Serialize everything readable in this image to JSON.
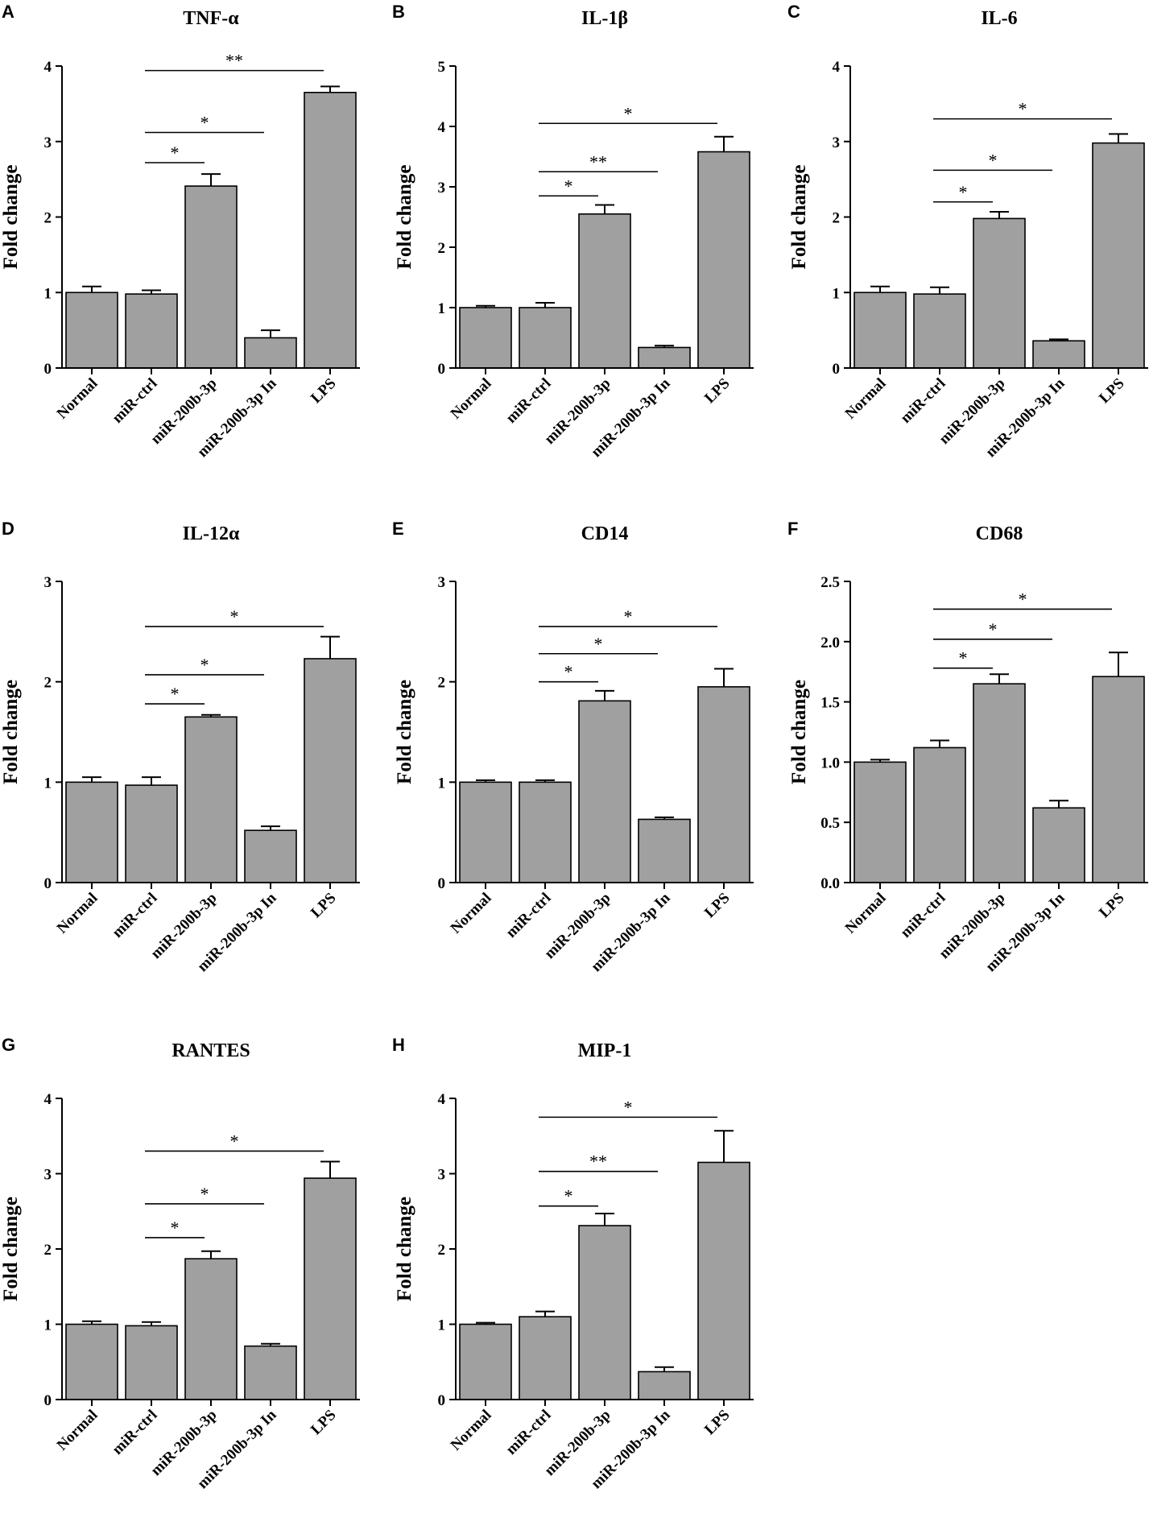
{
  "figure": {
    "categories": [
      "Normal",
      "miR-ctrl",
      "miR-200b-3p",
      "miR-200b-3p In",
      "LPS"
    ],
    "bar_color": "#a0a0a0"
  },
  "chart_data": [
    {
      "panel": "A",
      "type": "bar",
      "title": "TNF-α",
      "ylabel": "Fold change",
      "categories": [
        "Normal",
        "miR-ctrl",
        "miR-200b-3p",
        "miR-200b-3p In",
        "LPS"
      ],
      "values": [
        1.0,
        0.98,
        2.41,
        0.4,
        3.65
      ],
      "errors": [
        0.08,
        0.05,
        0.16,
        0.1,
        0.08
      ],
      "ylim": [
        0,
        4
      ],
      "yticks": [
        "0",
        "1",
        "2",
        "3",
        "4"
      ],
      "significance": [
        {
          "from": 1,
          "to": 2,
          "label": "*",
          "y": 2.72
        },
        {
          "from": 1,
          "to": 3,
          "label": "*",
          "y": 3.12
        },
        {
          "from": 1,
          "to": 4,
          "label": "**",
          "y": 3.94
        }
      ]
    },
    {
      "panel": "B",
      "type": "bar",
      "title": "IL-1β",
      "ylabel": "Fold change",
      "categories": [
        "Normal",
        "miR-ctrl",
        "miR-200b-3p",
        "miR-200b-3p In",
        "LPS"
      ],
      "values": [
        1.0,
        1.0,
        2.55,
        0.34,
        3.58
      ],
      "errors": [
        0.03,
        0.08,
        0.15,
        0.03,
        0.25
      ],
      "ylim": [
        0,
        5
      ],
      "yticks": [
        "0",
        "1",
        "2",
        "3",
        "4",
        "5"
      ],
      "significance": [
        {
          "from": 1,
          "to": 2,
          "label": "*",
          "y": 2.85
        },
        {
          "from": 1,
          "to": 3,
          "label": "**",
          "y": 3.25
        },
        {
          "from": 1,
          "to": 4,
          "label": "*",
          "y": 4.05
        }
      ]
    },
    {
      "panel": "C",
      "type": "bar",
      "title": "IL-6",
      "ylabel": "Fold change",
      "categories": [
        "Normal",
        "miR-ctrl",
        "miR-200b-3p",
        "miR-200b-3p In",
        "LPS"
      ],
      "values": [
        1.0,
        0.98,
        1.98,
        0.36,
        2.98
      ],
      "errors": [
        0.08,
        0.09,
        0.09,
        0.02,
        0.12
      ],
      "ylim": [
        0,
        4
      ],
      "yticks": [
        "0",
        "1",
        "2",
        "3",
        "4"
      ],
      "significance": [
        {
          "from": 1,
          "to": 2,
          "label": "*",
          "y": 2.2
        },
        {
          "from": 1,
          "to": 3,
          "label": "*",
          "y": 2.62
        },
        {
          "from": 1,
          "to": 4,
          "label": "*",
          "y": 3.3
        }
      ]
    },
    {
      "panel": "D",
      "type": "bar",
      "title": "IL-12α",
      "ylabel": "Fold change",
      "categories": [
        "Normal",
        "miR-ctrl",
        "miR-200b-3p",
        "miR-200b-3p In",
        "LPS"
      ],
      "values": [
        1.0,
        0.97,
        1.65,
        0.52,
        2.23
      ],
      "errors": [
        0.05,
        0.08,
        0.02,
        0.04,
        0.22
      ],
      "ylim": [
        0,
        3
      ],
      "yticks": [
        "0",
        "1",
        "2",
        "3"
      ],
      "significance": [
        {
          "from": 1,
          "to": 2,
          "label": "*",
          "y": 1.78
        },
        {
          "from": 1,
          "to": 3,
          "label": "*",
          "y": 2.07
        },
        {
          "from": 1,
          "to": 4,
          "label": "*",
          "y": 2.55
        }
      ]
    },
    {
      "panel": "E",
      "type": "bar",
      "title": "CD14",
      "ylabel": "Fold change",
      "categories": [
        "Normal",
        "miR-ctrl",
        "miR-200b-3p",
        "miR-200b-3p In",
        "LPS"
      ],
      "values": [
        1.0,
        1.0,
        1.81,
        0.63,
        1.95
      ],
      "errors": [
        0.02,
        0.02,
        0.1,
        0.02,
        0.18
      ],
      "ylim": [
        0,
        3
      ],
      "yticks": [
        "0",
        "1",
        "2",
        "3"
      ],
      "significance": [
        {
          "from": 1,
          "to": 2,
          "label": "*",
          "y": 2.0
        },
        {
          "from": 1,
          "to": 3,
          "label": "*",
          "y": 2.28
        },
        {
          "from": 1,
          "to": 4,
          "label": "*",
          "y": 2.55
        }
      ]
    },
    {
      "panel": "F",
      "type": "bar",
      "title": "CD68",
      "ylabel": "Fold change",
      "categories": [
        "Normal",
        "miR-ctrl",
        "miR-200b-3p",
        "miR-200b-3p In",
        "LPS"
      ],
      "values": [
        1.0,
        1.12,
        1.65,
        0.62,
        1.71
      ],
      "errors": [
        0.02,
        0.06,
        0.08,
        0.06,
        0.2
      ],
      "ylim": [
        0,
        2.5
      ],
      "yticks": [
        "0.0",
        "0.5",
        "1.0",
        "1.5",
        "2.0",
        "2.5"
      ],
      "significance": [
        {
          "from": 1,
          "to": 2,
          "label": "*",
          "y": 1.78
        },
        {
          "from": 1,
          "to": 3,
          "label": "*",
          "y": 2.02
        },
        {
          "from": 1,
          "to": 4,
          "label": "*",
          "y": 2.27
        }
      ]
    },
    {
      "panel": "G",
      "type": "bar",
      "title": "RANTES",
      "ylabel": "Fold change",
      "categories": [
        "Normal",
        "miR-ctrl",
        "miR-200b-3p",
        "miR-200b-3p In",
        "LPS"
      ],
      "values": [
        1.0,
        0.98,
        1.87,
        0.71,
        2.94
      ],
      "errors": [
        0.04,
        0.05,
        0.1,
        0.03,
        0.22
      ],
      "ylim": [
        0,
        4
      ],
      "yticks": [
        "0",
        "1",
        "2",
        "3",
        "4"
      ],
      "significance": [
        {
          "from": 1,
          "to": 2,
          "label": "*",
          "y": 2.15
        },
        {
          "from": 1,
          "to": 3,
          "label": "*",
          "y": 2.6
        },
        {
          "from": 1,
          "to": 4,
          "label": "*",
          "y": 3.3
        }
      ]
    },
    {
      "panel": "H",
      "type": "bar",
      "title": "MIP-1",
      "ylabel": "Fold change",
      "categories": [
        "Normal",
        "miR-ctrl",
        "miR-200b-3p",
        "miR-200b-3p In",
        "LPS"
      ],
      "values": [
        1.0,
        1.1,
        2.31,
        0.37,
        3.15
      ],
      "errors": [
        0.02,
        0.07,
        0.16,
        0.06,
        0.42
      ],
      "ylim": [
        0,
        4
      ],
      "yticks": [
        "0",
        "1",
        "2",
        "3",
        "4"
      ],
      "significance": [
        {
          "from": 1,
          "to": 2,
          "label": "*",
          "y": 2.57
        },
        {
          "from": 1,
          "to": 3,
          "label": "**",
          "y": 3.03
        },
        {
          "from": 1,
          "to": 4,
          "label": "*",
          "y": 3.75
        }
      ]
    }
  ]
}
